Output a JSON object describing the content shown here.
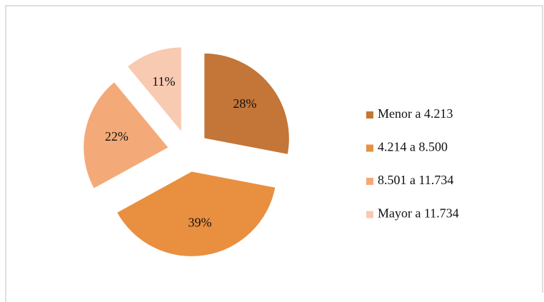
{
  "chart_data": {
    "type": "pie",
    "categories": [
      "Menor a 4.213",
      "4.214 a 8.500",
      "8.501 a 11.734",
      "Mayor a 11.734"
    ],
    "values": [
      28,
      39,
      22,
      11
    ],
    "value_labels": [
      "28%",
      "39%",
      "22%",
      "11%"
    ],
    "colors": [
      "#c37637",
      "#e98f40",
      "#f4aa78",
      "#f8cab1"
    ],
    "legend": "right"
  }
}
